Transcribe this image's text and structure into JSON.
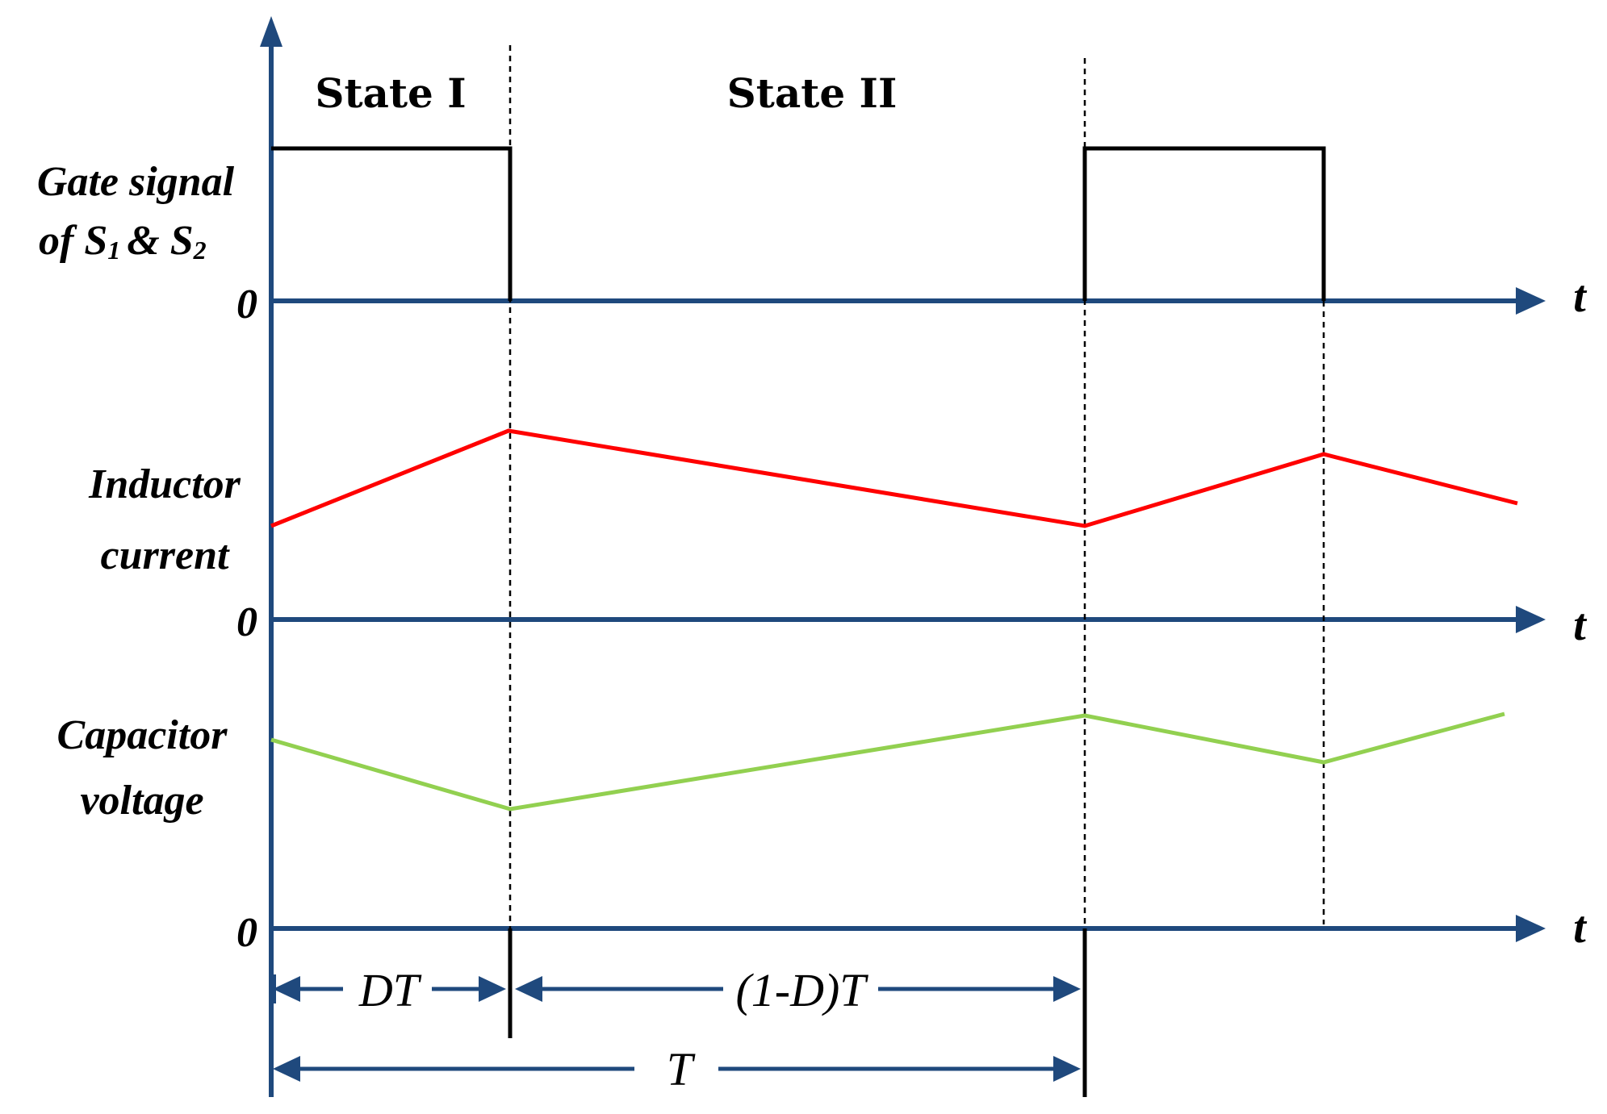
{
  "states": {
    "state1": "State I",
    "state2": "State II"
  },
  "labels": {
    "gate_line1": "Gate signal",
    "gate_line2_prefix": "of S",
    "gate_sub1": "1",
    "gate_amp": "& S",
    "gate_sub2": "2",
    "inductor_line1": "Inductor",
    "inductor_line2": "current",
    "capacitor_line1": "Capacitor",
    "capacitor_line2": "voltage",
    "zero": "0",
    "time": "t"
  },
  "dimensions": {
    "dt": "DT",
    "one_minus_d_t": "(1-D)T",
    "period": "T"
  },
  "colors": {
    "axis": "#1f497d",
    "gate": "#000000",
    "inductor": "#ff0000",
    "capacitor": "#92d050"
  }
}
